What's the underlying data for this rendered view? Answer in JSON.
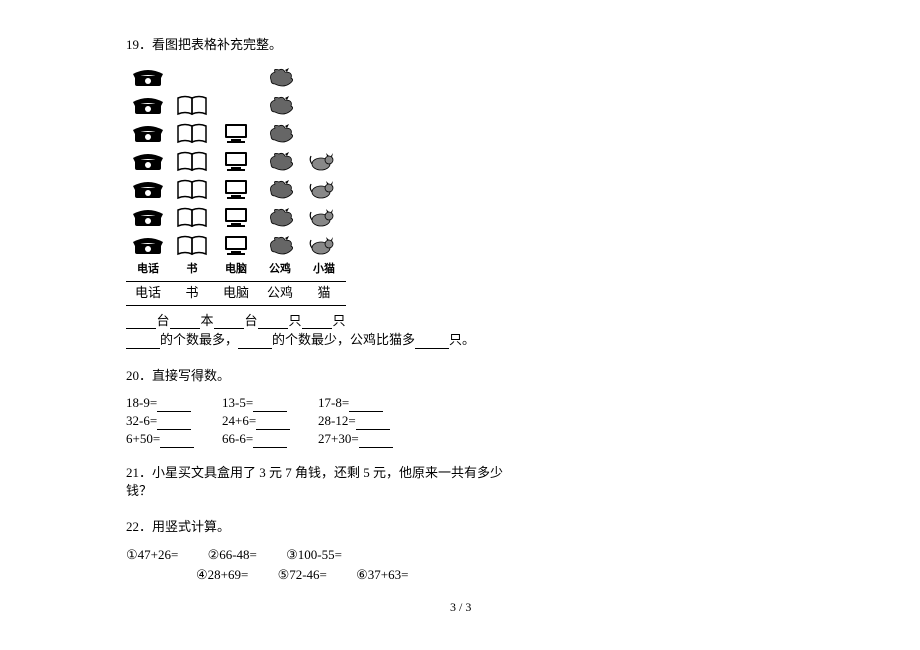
{
  "q19": {
    "title": "19．看图把表格补充完整。",
    "grid": {
      "cols": 5,
      "rows": 7,
      "counts": [
        7,
        6,
        5,
        7,
        4
      ],
      "icon_labels": [
        "电话",
        "书",
        "电脑",
        "公鸡",
        "小猫"
      ],
      "cn_labels": [
        "电话",
        "书",
        "电脑",
        "公鸡",
        "猫"
      ]
    },
    "units": [
      "台",
      "本",
      "台",
      "只",
      "只"
    ],
    "sentence_parts": [
      "的个数最多，",
      "的个数最少，公鸡比猫多",
      "只。"
    ]
  },
  "q20": {
    "title": "20．直接写得数。",
    "rows": [
      [
        "18-9=",
        "13-5=",
        "17-8="
      ],
      [
        "32-6=",
        "24+6=",
        "28-12="
      ],
      [
        "6+50=",
        "66-6=",
        "27+30="
      ]
    ]
  },
  "q21": {
    "title": "21．小星买文具盒用了 3 元 7 角钱，还剩 5 元，他原来一共有多少钱？"
  },
  "q22": {
    "title": "22．用竖式计算。",
    "items": [
      "①47+26=",
      "②66-48=",
      "③100-55=",
      "④28+69=",
      "⑤72-46=",
      "⑥37+63="
    ]
  },
  "page_number": "3 / 3"
}
